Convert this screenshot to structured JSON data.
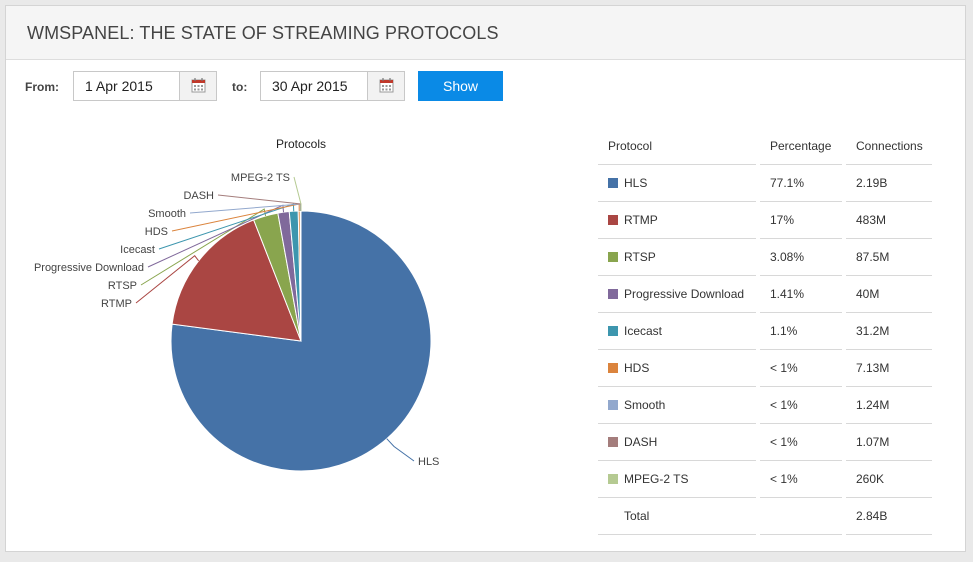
{
  "header": {
    "title": "WMSPANEL: THE STATE OF STREAMING PROTOCOLS"
  },
  "filter": {
    "from_label": "From:",
    "from_value": "1 Apr 2015",
    "to_label": "to:",
    "to_value": "30 Apr 2015",
    "show_label": "Show"
  },
  "table": {
    "headers": [
      "Protocol",
      "Percentage",
      "Connections"
    ],
    "rows": [
      {
        "protocol": "HLS",
        "percentage": "77.1%",
        "connections": "2.19B",
        "color": "#4572a7"
      },
      {
        "protocol": "RTMP",
        "percentage": "17%",
        "connections": "483M",
        "color": "#aa4643"
      },
      {
        "protocol": "RTSP",
        "percentage": "3.08%",
        "connections": "87.5M",
        "color": "#89a54e"
      },
      {
        "protocol": "Progressive Download",
        "percentage": "1.41%",
        "connections": "40M",
        "color": "#80699b"
      },
      {
        "protocol": "Icecast",
        "percentage": "1.1%",
        "connections": "31.2M",
        "color": "#3d96ae"
      },
      {
        "protocol": "HDS",
        "percentage": "< 1%",
        "connections": "7.13M",
        "color": "#db843d"
      },
      {
        "protocol": "Smooth",
        "percentage": "< 1%",
        "connections": "1.24M",
        "color": "#92a8cd"
      },
      {
        "protocol": "DASH",
        "percentage": "< 1%",
        "connections": "1.07M",
        "color": "#a47d7c"
      },
      {
        "protocol": "MPEG-2 TS",
        "percentage": "< 1%",
        "connections": "260K",
        "color": "#b5ca92"
      }
    ],
    "total_label": "Total",
    "total_connections": "2.84B"
  },
  "chart_data": {
    "type": "pie",
    "title": "Protocols",
    "categories": [
      "HLS",
      "RTMP",
      "RTSP",
      "Progressive Download",
      "Icecast",
      "HDS",
      "Smooth",
      "DASH",
      "MPEG-2 TS"
    ],
    "values": [
      77.1,
      17.0,
      3.08,
      1.41,
      1.1,
      0.251,
      0.0437,
      0.0377,
      0.00916
    ],
    "connections": [
      "2.19B",
      "483M",
      "87.5M",
      "40M",
      "31.2M",
      "7.13M",
      "1.24M",
      "1.07M",
      "260K"
    ],
    "colors": [
      "#4572a7",
      "#aa4643",
      "#89a54e",
      "#80699b",
      "#3d96ae",
      "#db843d",
      "#92a8cd",
      "#a47d7c",
      "#b5ca92"
    ],
    "unit": "%"
  }
}
